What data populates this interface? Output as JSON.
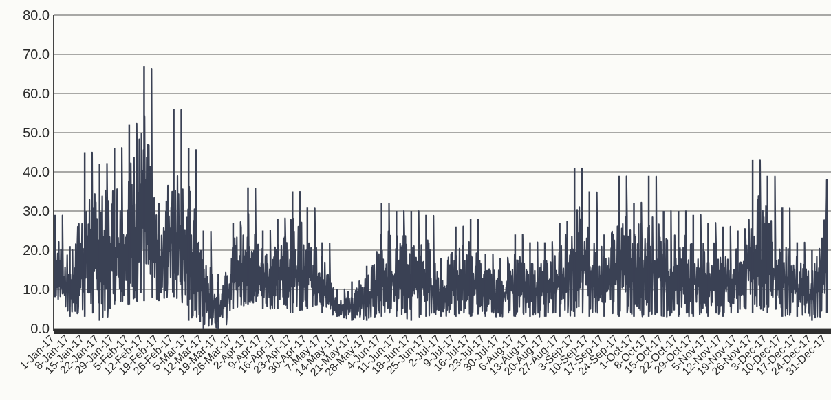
{
  "chart_data": {
    "type": "line",
    "title": "",
    "xlabel": "",
    "ylabel": "",
    "ylim": [
      0,
      80
    ],
    "yticks": [
      "0.0",
      "10.0",
      "20.0",
      "30.0",
      "40.0",
      "50.0",
      "60.0",
      "70.0",
      "80.0"
    ],
    "grid": "horizontal",
    "legend": "none",
    "x_tick_labels": [
      "1-Jan-17",
      "8-Jan-17",
      "15-Jan-17",
      "22-Jan-17",
      "29-Jan-17",
      "5-Feb-17",
      "12-Feb-17",
      "19-Feb-17",
      "26-Feb-17",
      "5-Mar-17",
      "12-Mar-17",
      "19-Mar-17",
      "26-Mar-17",
      "2-Apr-17",
      "9-Apr-17",
      "16-Apr-17",
      "23-Apr-17",
      "30-Apr-17",
      "7-May-17",
      "14-May-17",
      "21-May-17",
      "28-May-17",
      "4-Jun-17",
      "11-Jun-17",
      "18-Jun-17",
      "25-Jun-17",
      "2-Jul-17",
      "9-Jul-17",
      "16-Jul-17",
      "23-Jul-17",
      "30-Jul-17",
      "6-Aug-17",
      "13-Aug-17",
      "20-Aug-17",
      "27-Aug-17",
      "3-Sep-17",
      "10-Sep-17",
      "17-Sep-17",
      "24-Sep-17",
      "1-Oct-17",
      "8-Oct-17",
      "15-Oct-17",
      "22-Oct-17",
      "29-Oct-17",
      "5-Nov-17",
      "12-Nov-17",
      "19-Nov-17",
      "26-Nov-17",
      "3-Dec-17",
      "10-Dec-17",
      "17-Dec-17",
      "24-Dec-17",
      "31-Dec-17"
    ],
    "series": [
      {
        "color": "#3a4154",
        "x": [
          "1-Jan-17",
          "8-Jan-17",
          "15-Jan-17",
          "22-Jan-17",
          "29-Jan-17",
          "5-Feb-17",
          "12-Feb-17",
          "19-Feb-17",
          "26-Feb-17",
          "5-Mar-17",
          "12-Mar-17",
          "19-Mar-17",
          "26-Mar-17",
          "2-Apr-17",
          "9-Apr-17",
          "16-Apr-17",
          "23-Apr-17",
          "30-Apr-17",
          "7-May-17",
          "14-May-17",
          "21-May-17",
          "28-May-17",
          "4-Jun-17",
          "11-Jun-17",
          "18-Jun-17",
          "25-Jun-17",
          "2-Jul-17",
          "9-Jul-17",
          "16-Jul-17",
          "23-Jul-17",
          "30-Jul-17",
          "6-Aug-17",
          "13-Aug-17",
          "20-Aug-17",
          "27-Aug-17",
          "3-Sep-17",
          "10-Sep-17",
          "17-Sep-17",
          "24-Sep-17",
          "1-Oct-17",
          "8-Oct-17",
          "15-Oct-17",
          "22-Oct-17",
          "29-Oct-17",
          "5-Nov-17",
          "12-Nov-17",
          "19-Nov-17",
          "26-Nov-17",
          "3-Dec-17",
          "10-Dec-17",
          "17-Dec-17",
          "24-Dec-17",
          "31-Dec-17"
        ],
        "low": [
          8,
          3,
          3,
          2,
          6,
          6,
          7,
          7,
          8,
          2,
          0,
          0,
          5,
          6,
          5,
          5,
          4,
          5,
          4,
          3,
          2,
          2,
          3,
          3,
          2,
          3,
          3,
          3,
          3,
          3,
          3,
          3,
          3,
          3,
          3,
          3,
          3,
          3,
          3,
          3,
          3,
          3,
          3,
          3,
          3,
          3,
          4,
          4,
          4,
          3,
          3,
          2,
          4
        ],
        "high": [
          29,
          21,
          45,
          42,
          46,
          52,
          67,
          32,
          56,
          46,
          25,
          14,
          27,
          36,
          25,
          28,
          35,
          31,
          22,
          10,
          12,
          16,
          32,
          30,
          30,
          29,
          18,
          26,
          28,
          19,
          18,
          24,
          22,
          22,
          27,
          41,
          35,
          24,
          39,
          32,
          39,
          30,
          30,
          29,
          27,
          26,
          25,
          43,
          39,
          31,
          22,
          20,
          38
        ]
      }
    ]
  }
}
